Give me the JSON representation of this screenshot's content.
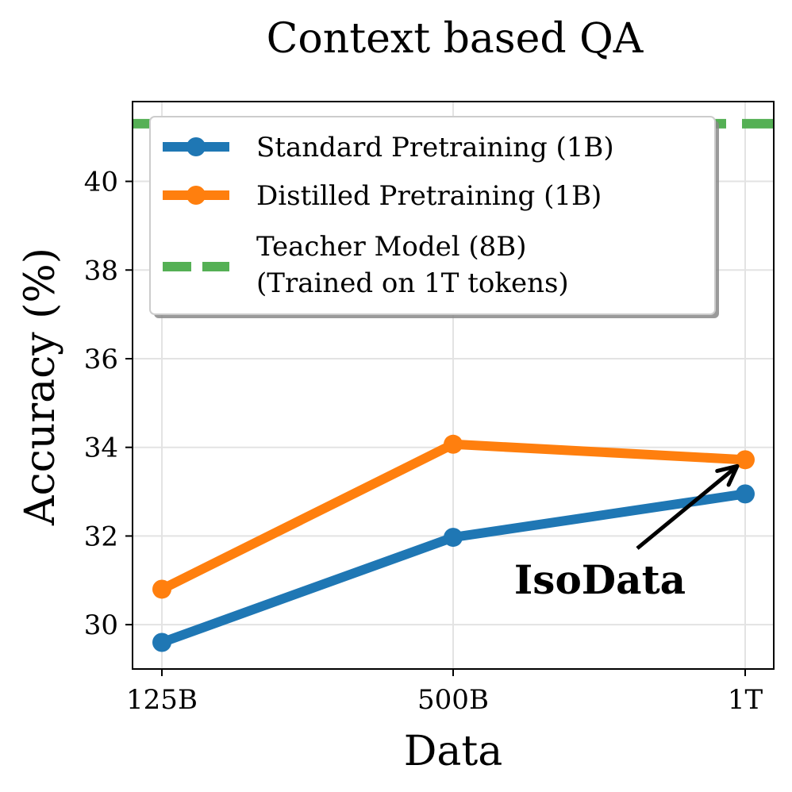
{
  "chart_data": {
    "type": "line",
    "title": "Context based QA",
    "xlabel": "Data",
    "ylabel": "Accuracy (%)",
    "categories": [
      "125B",
      "500B",
      "1T"
    ],
    "ylim": [
      29.0,
      41.8
    ],
    "yticks": [
      30,
      32,
      34,
      36,
      38,
      40
    ],
    "grid": true,
    "legend_position": "top",
    "series": [
      {
        "name": "Standard Pretraining (1B)",
        "values": [
          29.6,
          31.97,
          32.95
        ],
        "color": "#1f77b4",
        "style": "solid-marker"
      },
      {
        "name": "Distilled Pretraining (1B)",
        "values": [
          30.8,
          34.07,
          33.72
        ],
        "color": "#ff7f0e",
        "style": "solid-marker"
      }
    ],
    "reference_lines": [
      {
        "name_lines": [
          "Teacher Model (8B)",
          "(Trained on 1T tokens)"
        ],
        "value": 41.3,
        "color": "#55b055",
        "style": "dashed"
      }
    ],
    "annotation": {
      "text": "IsoData",
      "points_to": {
        "category": "1T",
        "value": 33.72
      }
    }
  }
}
